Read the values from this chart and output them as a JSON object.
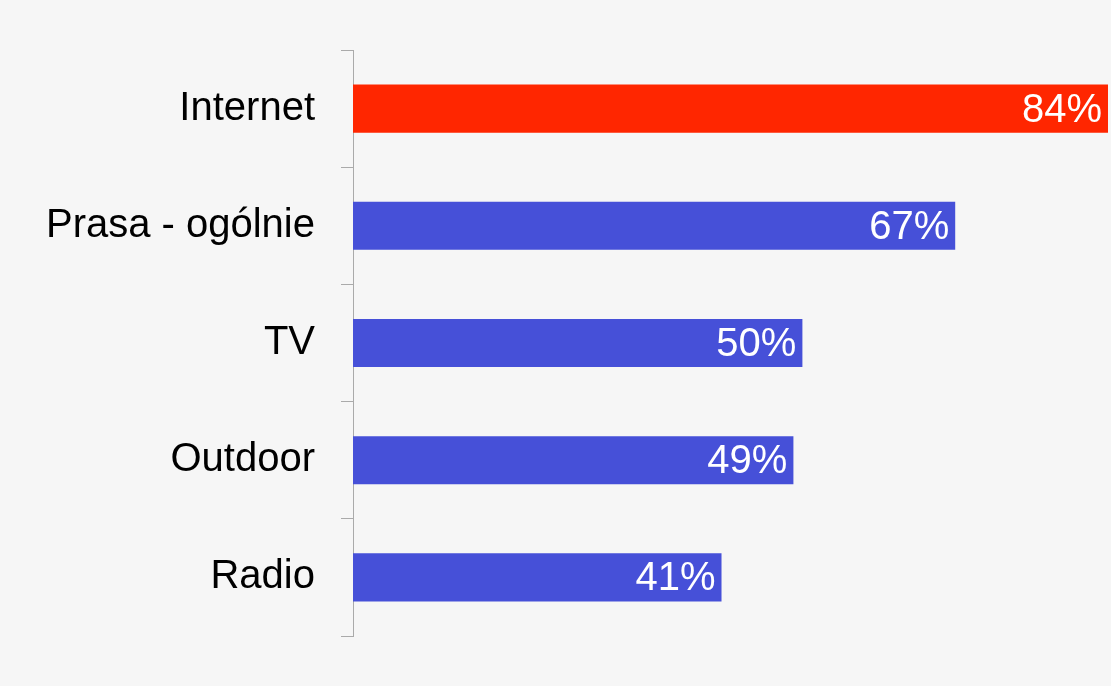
{
  "chart_data": {
    "type": "bar",
    "orientation": "horizontal",
    "categories": [
      "Internet",
      "Prasa - ogólnie",
      "TV",
      "Outdoor",
      "Radio"
    ],
    "values": [
      84,
      67,
      50,
      49,
      41
    ],
    "colors": [
      "#ff2600",
      "#4650d8",
      "#4650d8",
      "#4650d8",
      "#4650d8"
    ],
    "value_labels": [
      "84%",
      "67%",
      "50%",
      "49%",
      "41%"
    ],
    "xlim": [
      0,
      84
    ],
    "tick_labels": "y",
    "grid": false,
    "legend": false
  }
}
